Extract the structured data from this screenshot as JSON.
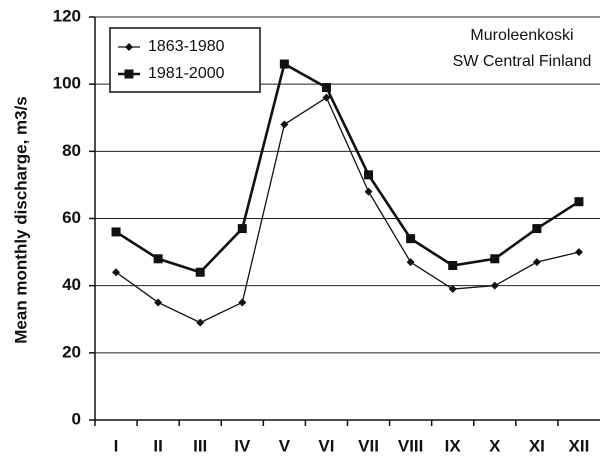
{
  "chart_data": {
    "type": "line",
    "y_label": "Mean monthly discharge, m3/s",
    "annotations": [
      "Muroleenkoski",
      "SW Central Finland"
    ],
    "categories": [
      "I",
      "II",
      "III",
      "IV",
      "V",
      "VI",
      "VII",
      "VIII",
      "IX",
      "X",
      "XI",
      "XII"
    ],
    "series": [
      {
        "name": "1863-1980",
        "color": "#111111",
        "marker": "diamond",
        "values": [
          44,
          35,
          29,
          35,
          88,
          96,
          68,
          47,
          39,
          40,
          47,
          50
        ]
      },
      {
        "name": "1981-2000",
        "color": "#111111",
        "marker": "square",
        "values": [
          56,
          48,
          44,
          57,
          106,
          99,
          73,
          54,
          46,
          48,
          57,
          65
        ]
      }
    ],
    "ylim": [
      0,
      120
    ],
    "yticks": [
      0,
      20,
      40,
      60,
      80,
      100,
      120
    ],
    "grid": true,
    "legend": "upper left"
  }
}
